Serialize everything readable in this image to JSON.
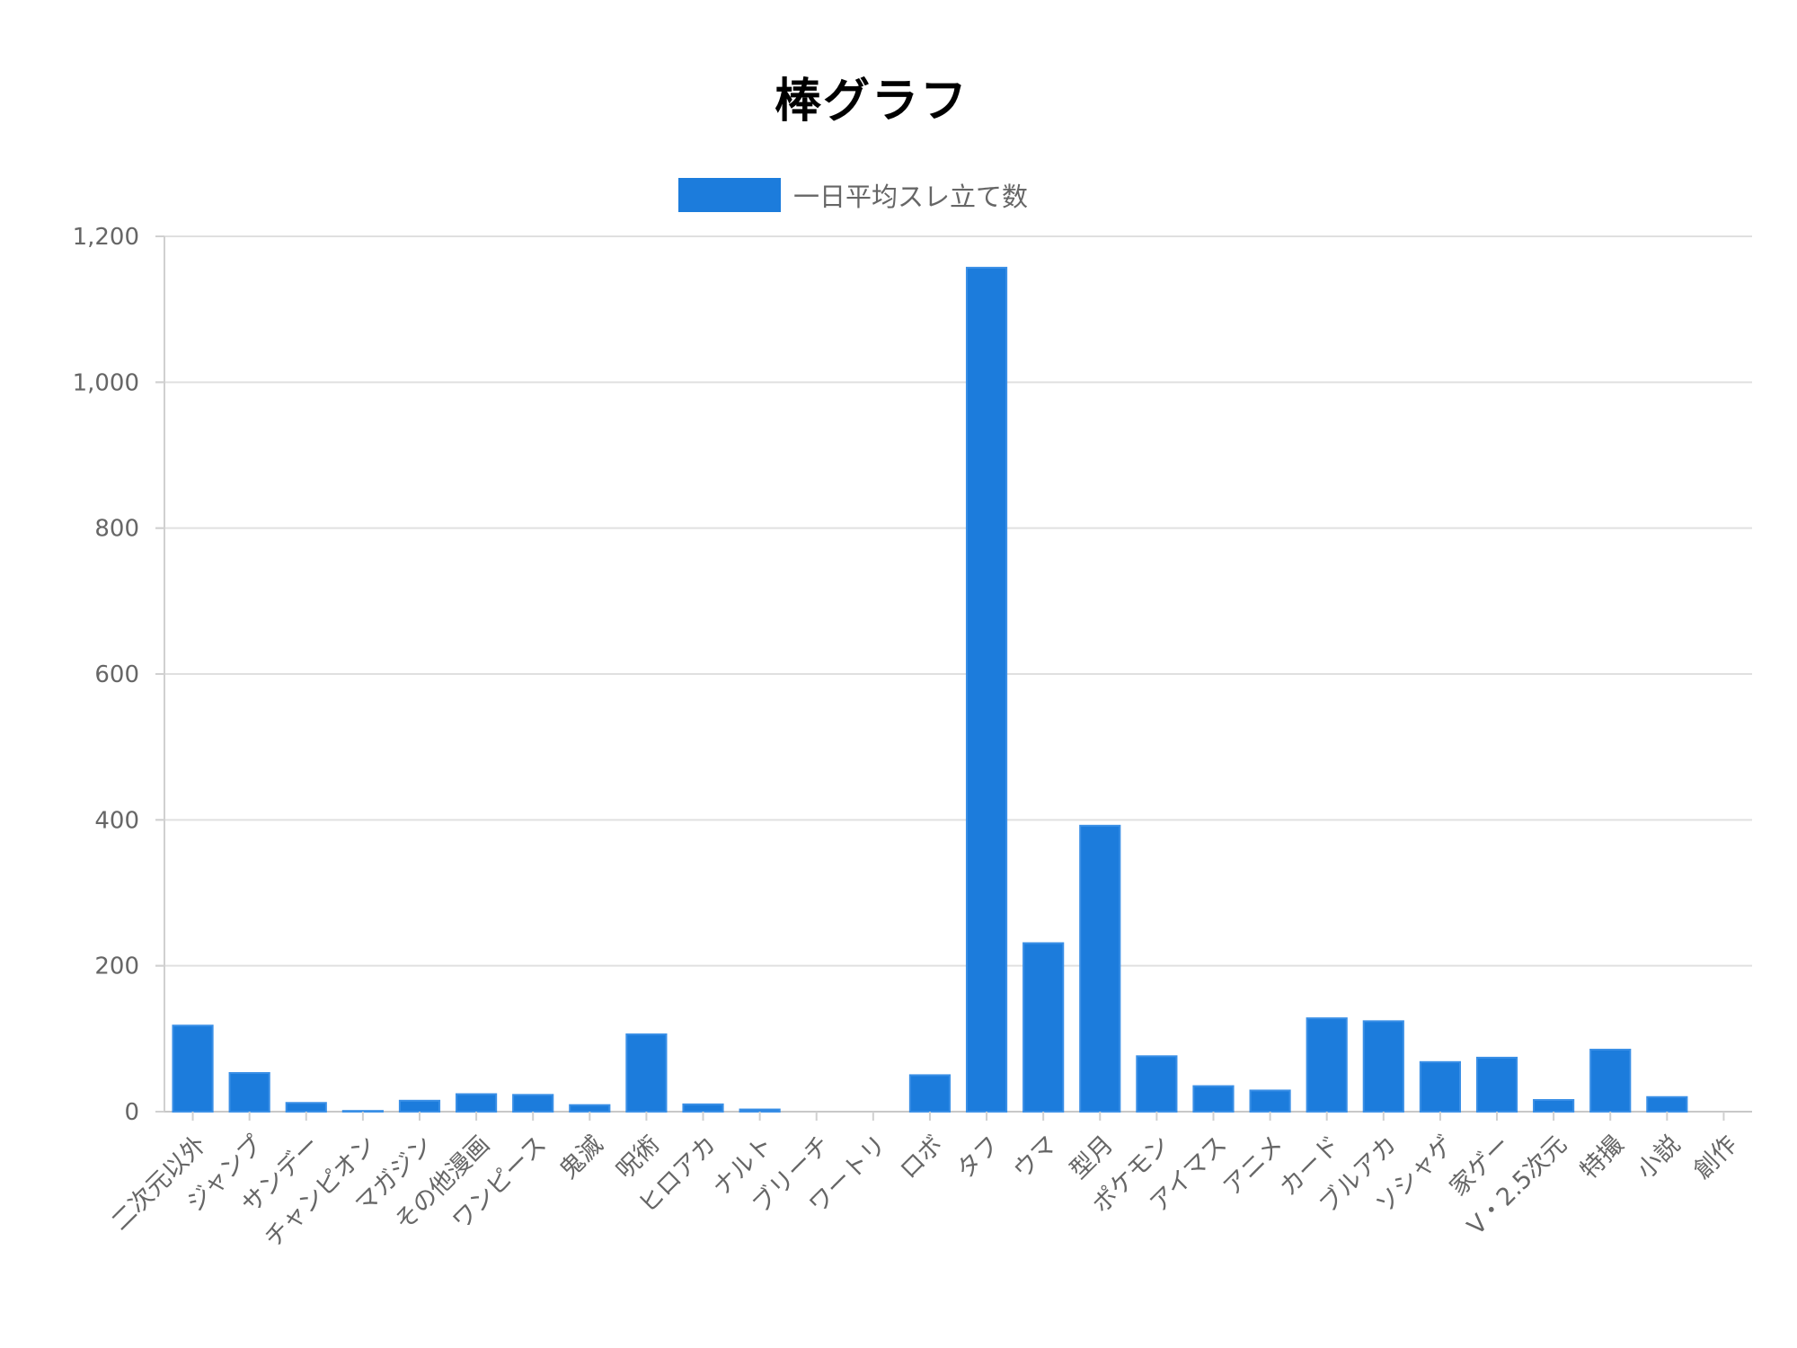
{
  "chart_data": {
    "type": "bar",
    "title": "棒グラフ",
    "xlabel": "",
    "ylabel": "",
    "ylim": [
      0,
      1200
    ],
    "yticks": [
      0,
      200,
      400,
      600,
      800,
      1000,
      1200
    ],
    "ytick_labels": [
      "0",
      "200",
      "400",
      "600",
      "800",
      "1,000",
      "1,200"
    ],
    "grid": true,
    "legend_position": "top",
    "categories": [
      "二次元以外",
      "ジャンプ",
      "サンデー",
      "チャンピオン",
      "マガジン",
      "その他漫画",
      "ワンピース",
      "鬼滅",
      "呪術",
      "ヒロアカ",
      "ナルト",
      "ブリーチ",
      "ワートリ",
      "ロボ",
      "タフ",
      "ウマ",
      "型月",
      "ポケモン",
      "アイマス",
      "アニメ",
      "カード",
      "ブルアカ",
      "ソシャゲ",
      "家ゲー",
      "V・2.5次元",
      "特撮",
      "小説",
      "創作"
    ],
    "series": [
      {
        "name": "一日平均スレ立て数",
        "color": "#1c7cdc",
        "values": [
          118,
          53,
          12,
          1,
          15,
          24,
          23,
          9,
          106,
          10,
          3,
          0,
          0,
          50,
          1157,
          231,
          392,
          76,
          35,
          29,
          128,
          124,
          68,
          74,
          16,
          85,
          20,
          0
        ]
      }
    ]
  }
}
